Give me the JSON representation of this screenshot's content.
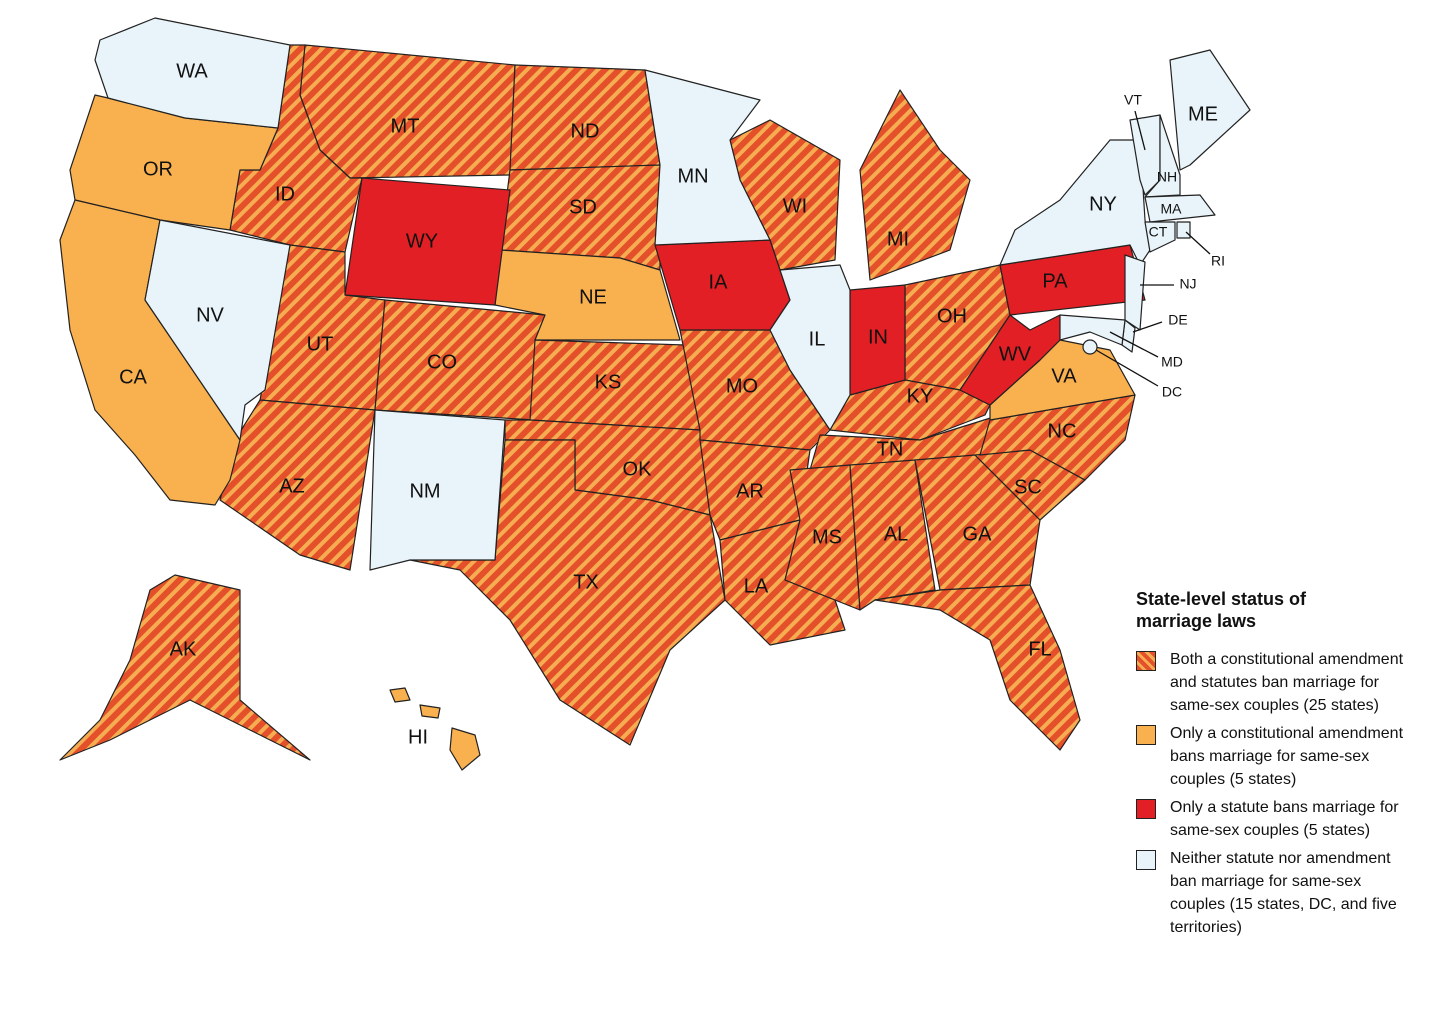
{
  "legend": {
    "title": "State-level status of marriage laws",
    "items": [
      {
        "text": "Both a constitutional amendment and statutes ban marriage for same-sex couples (25 states)",
        "color": "#e4502a",
        "hatch": "#f6ad52",
        "states": [
          "MT",
          "ID",
          "ND",
          "SD",
          "UT",
          "CO",
          "KS",
          "AZ",
          "OK",
          "TX",
          "MO",
          "AR",
          "LA",
          "WI",
          "MI",
          "OH",
          "KY",
          "TN",
          "MS",
          "AL",
          "GA",
          "SC",
          "NC",
          "FL",
          "AK"
        ]
      },
      {
        "text": "Only a constitutional amendment bans marriage for same-sex couples (5 states)",
        "color": "#f9b04f",
        "states": [
          "OR",
          "CA",
          "NE",
          "VA",
          "HI"
        ]
      },
      {
        "text": "Only a statute bans marriage for same-sex couples (5 states)",
        "color": "#e11f24",
        "states": [
          "WY",
          "IA",
          "IN",
          "PA",
          "WV"
        ]
      },
      {
        "text": "Neither statute nor amendment ban marriage for same-sex couples (15 states, DC, and five territories)",
        "color": "#e8f4f9",
        "states": [
          "WA",
          "NV",
          "NM",
          "MN",
          "IL",
          "NY",
          "ME",
          "VT",
          "NH",
          "MA",
          "CT",
          "RI",
          "NJ",
          "DE",
          "MD",
          "DC"
        ]
      }
    ]
  }
}
